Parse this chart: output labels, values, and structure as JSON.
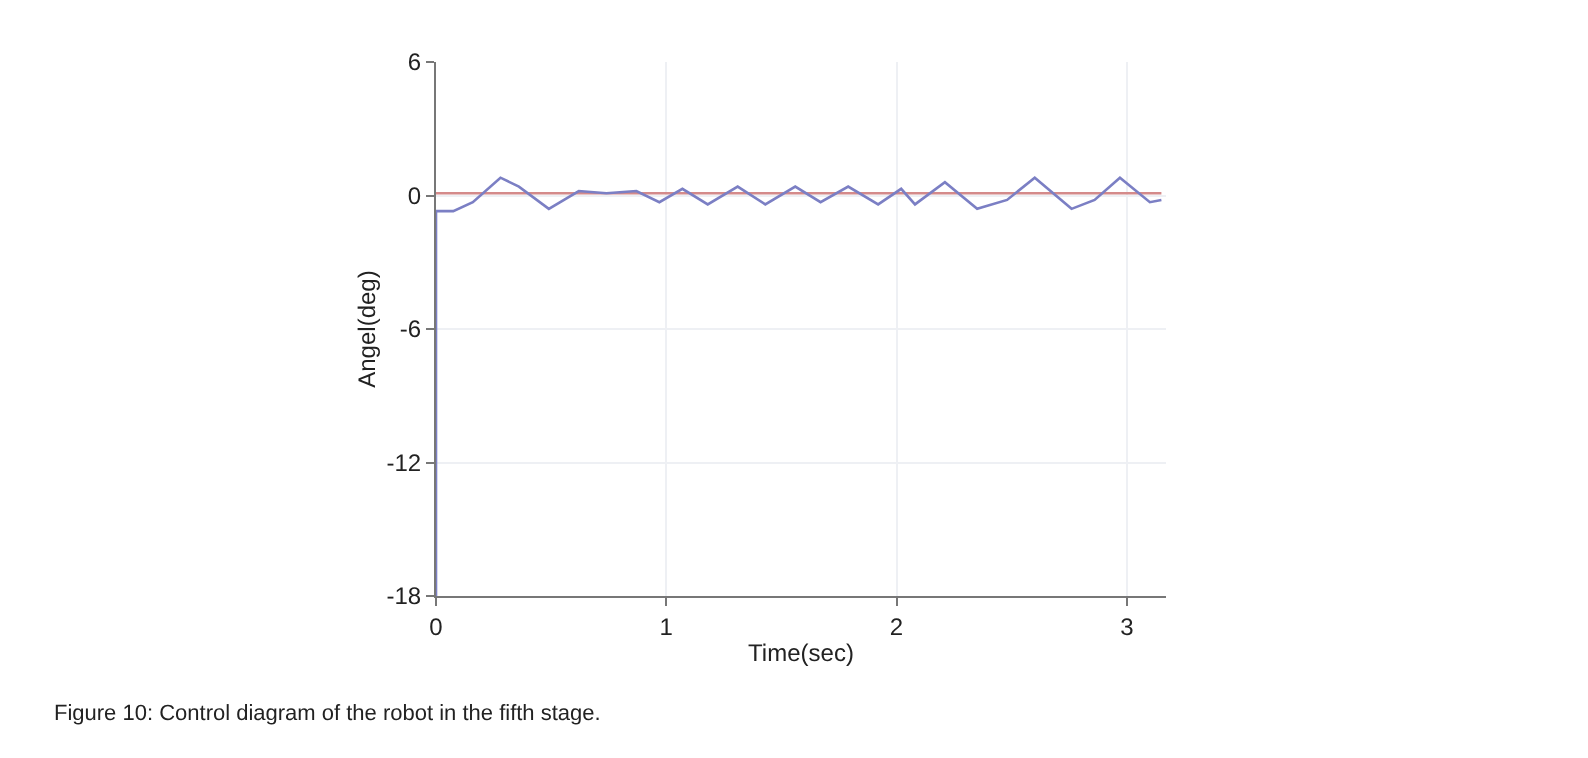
{
  "chart_data": {
    "type": "line",
    "xlabel": "Time(sec)",
    "ylabel": "Angel(deg)",
    "annotations": [
      "Figure 10: Control diagram of the robot in the fifth stage."
    ],
    "xlim": [
      0,
      3.17
    ],
    "xticks": [
      0,
      1,
      2,
      3
    ],
    "ylim": [
      -18,
      6
    ],
    "yticks": [
      -18,
      -12,
      -6,
      0,
      6
    ],
    "grid": true,
    "series": [
      {
        "color": "#d48a8a",
        "x": [
          0,
          3.15
        ],
        "values": [
          0.1,
          0.1
        ]
      },
      {
        "color": "#7b7fc4",
        "x": [
          0,
          0,
          0.075,
          0.16,
          0.28,
          0.36,
          0.49,
          0.62,
          0.74,
          0.87,
          0.97,
          1.07,
          1.18,
          1.31,
          1.43,
          1.56,
          1.67,
          1.79,
          1.92,
          2.02,
          2.08,
          2.21,
          2.35,
          2.48,
          2.6,
          2.76,
          2.86,
          2.97,
          3.1,
          3.15
        ],
        "values": [
          -18,
          -0.7,
          -0.7,
          -0.3,
          0.8,
          0.4,
          -0.6,
          0.2,
          0.1,
          0.2,
          -0.3,
          0.3,
          -0.4,
          0.4,
          -0.4,
          0.4,
          -0.3,
          0.4,
          -0.4,
          0.3,
          -0.4,
          0.6,
          -0.6,
          -0.2,
          0.8,
          -0.6,
          -0.2,
          0.8,
          -0.3,
          -0.2
        ]
      }
    ]
  }
}
